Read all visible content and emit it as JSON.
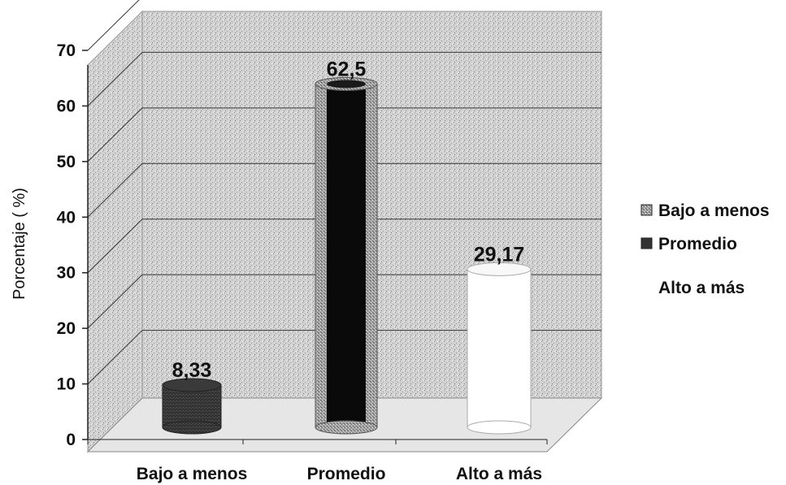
{
  "chart_data": {
    "type": "bar",
    "categories": [
      "Bajo a menos",
      "Promedio",
      "Alto a más"
    ],
    "values": [
      8.33,
      62.5,
      29.17
    ],
    "value_labels": [
      "8,33",
      "62,5",
      "29,17"
    ],
    "ylabel": "Porcentaje ( %)",
    "xlabel": "",
    "ylim": [
      0,
      70
    ],
    "yticks": [
      0,
      10,
      20,
      30,
      40,
      50,
      60,
      70
    ],
    "grid": true,
    "legend_position": "right",
    "legend": [
      "Bajo a menos",
      "Promedio",
      "Alto a más"
    ],
    "colors": [
      "#2a2a2a",
      "#0a0a0a",
      "#ffffff"
    ],
    "background": "#d0d0d0"
  }
}
